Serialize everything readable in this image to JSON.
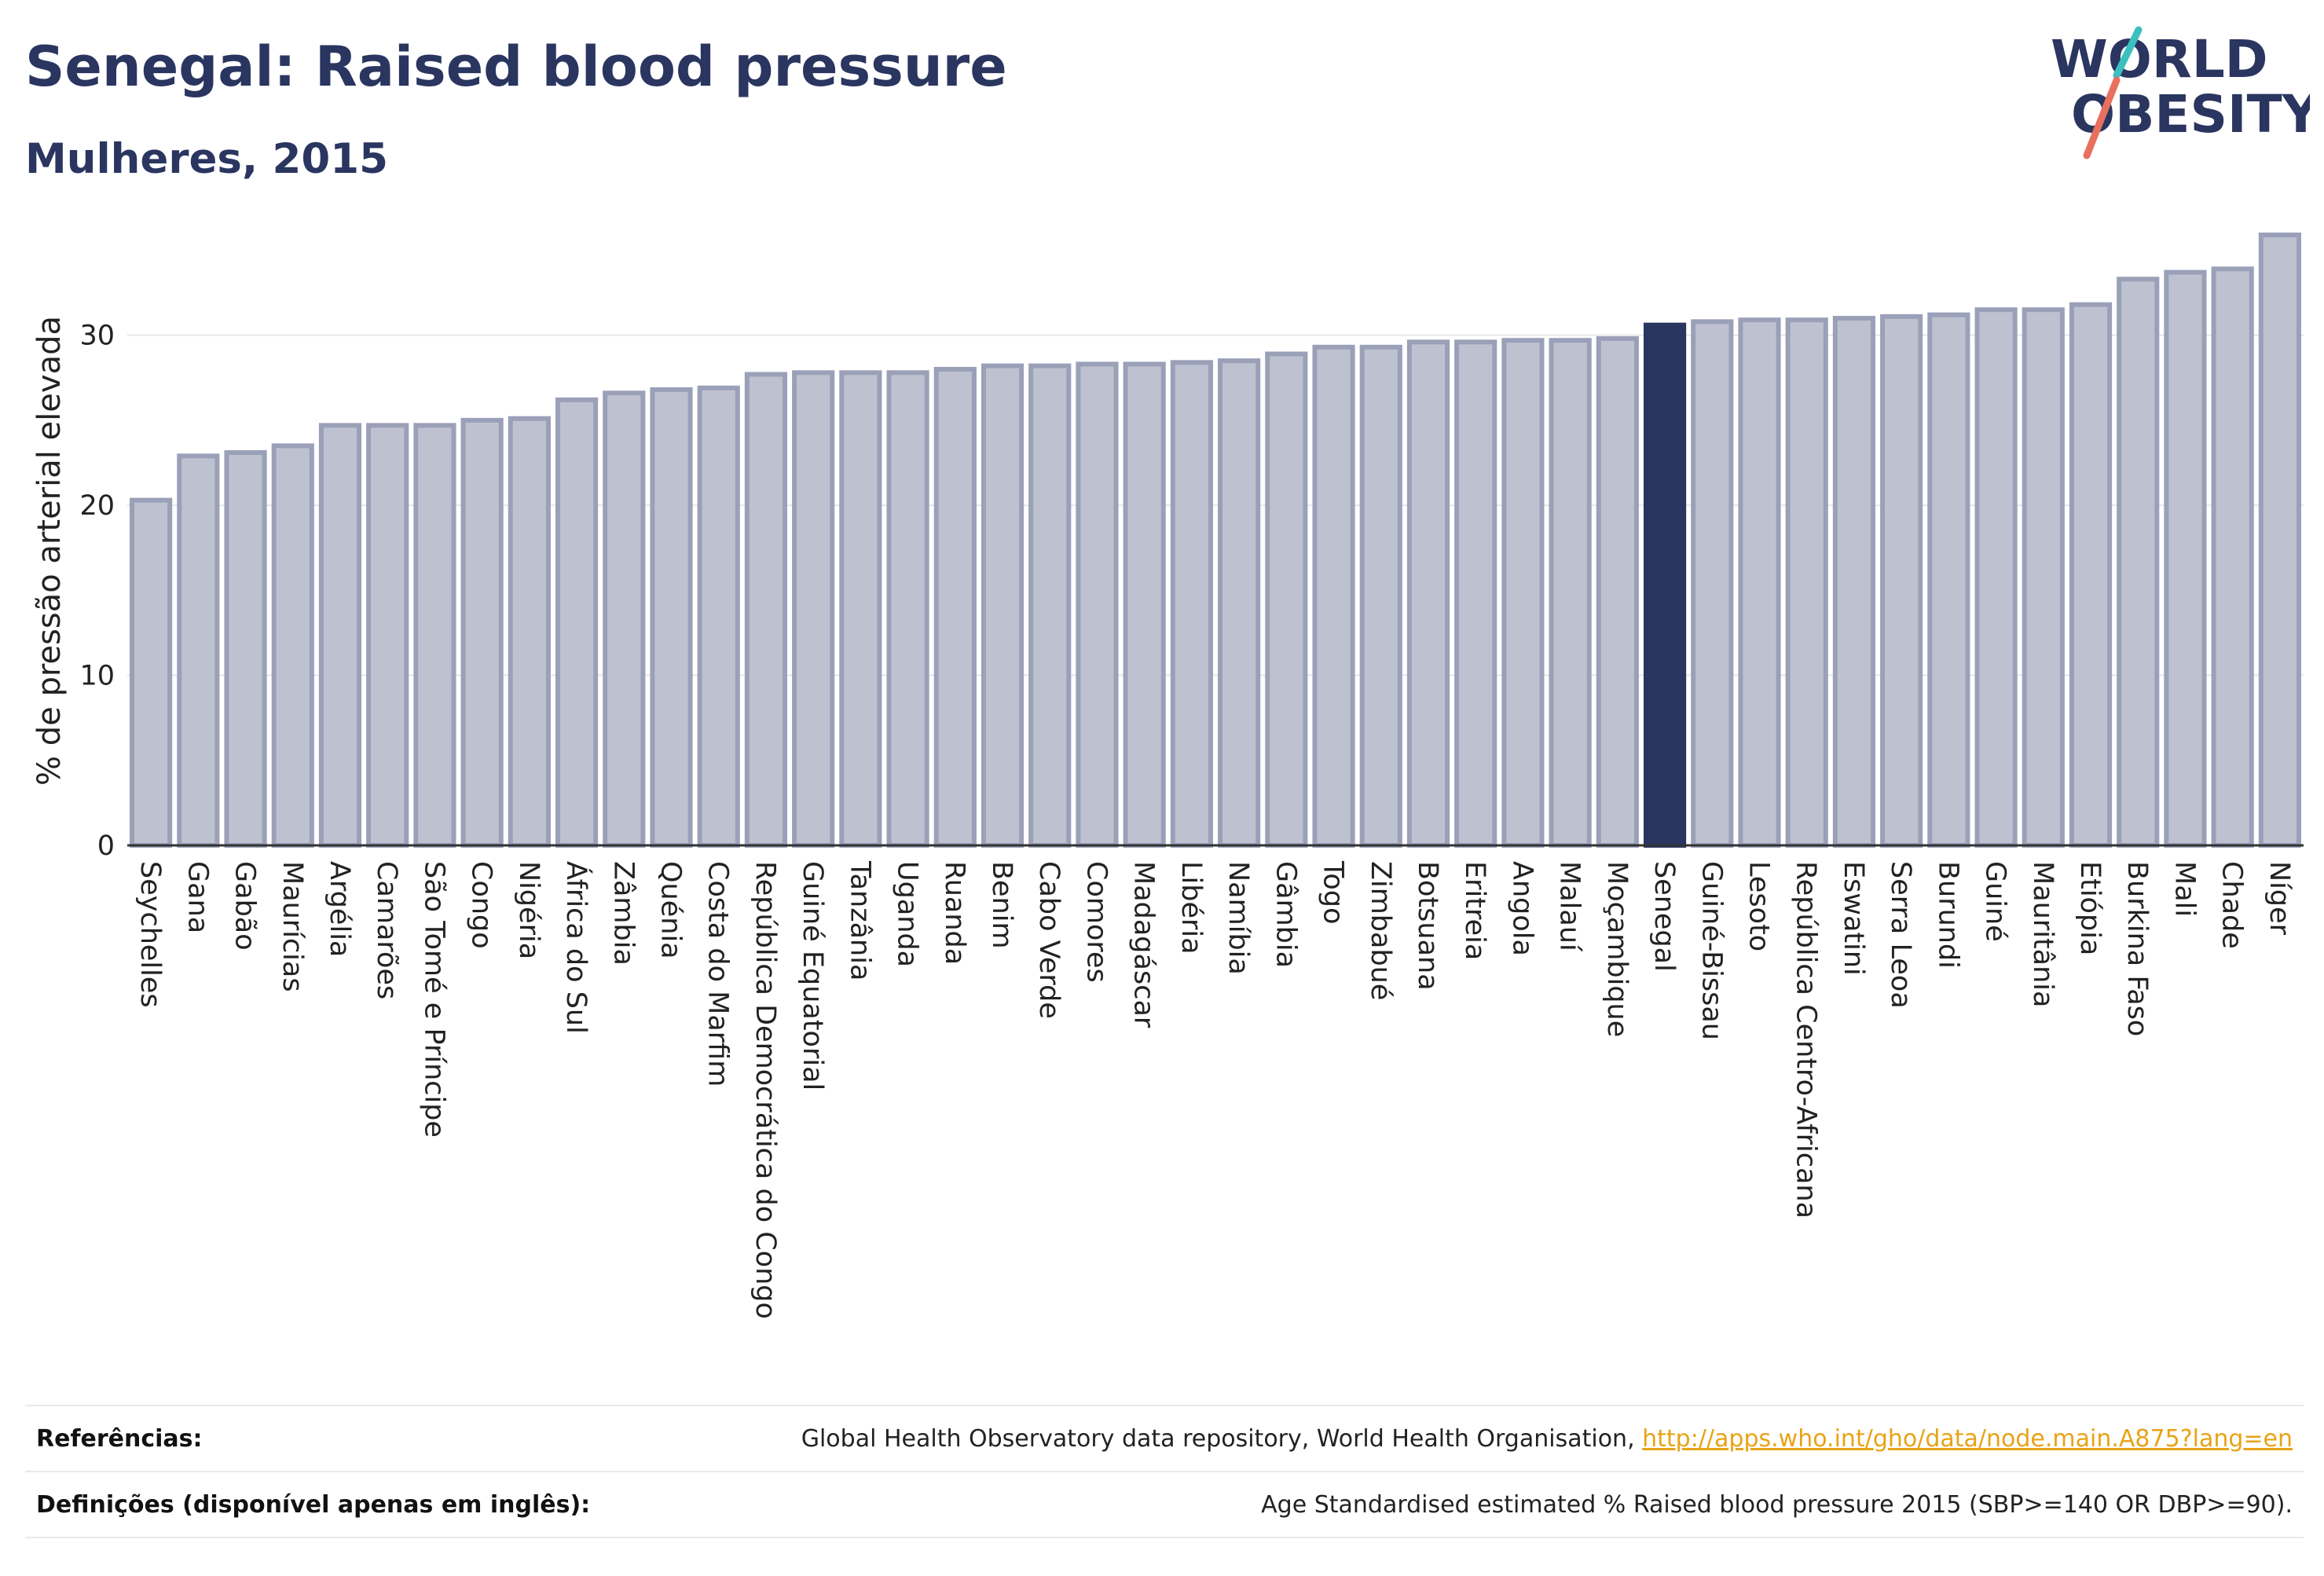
{
  "header": {
    "title": "Senegal: Raised blood pressure",
    "subtitle": "Mulheres, 2015",
    "logo_line1": "WORLD",
    "logo_line2": "OBESITY"
  },
  "colors": {
    "bar": "#bec2d0",
    "bar_stroke": "#9aa0b8",
    "highlight": "#2a3560",
    "title": "#2a3560",
    "link": "#e8a317",
    "logo_teal": "#3bbfbf",
    "logo_coral": "#e8705f"
  },
  "chart_data": {
    "type": "bar",
    "ylabel": "% de pressão arterial elevada",
    "ylim": [
      0,
      36.5
    ],
    "yticks": [
      0,
      10,
      20,
      30
    ],
    "grid": true,
    "highlight": "Senegal",
    "categories": [
      "Seychelles",
      "Gana",
      "Gabão",
      "Maurícias",
      "Argélia",
      "Camarões",
      "São Tomé e Príncipe",
      "Congo",
      "Nigéria",
      "África do Sul",
      "Zâmbia",
      "Quénia",
      "Costa do Marfim",
      "República Democrática do Congo",
      "Guiné Equatorial",
      "Tanzânia",
      "Uganda",
      "Ruanda",
      "Benim",
      "Cabo Verde",
      "Comores",
      "Madagáscar",
      "Libéria",
      "Namíbia",
      "Gâmbia",
      "Togo",
      "Zimbabué",
      "Botsuana",
      "Eritreia",
      "Angola",
      "Malauí",
      "Moçambique",
      "Senegal",
      "Guiné-Bissau",
      "Lesoto",
      "República Centro-Africana",
      "Eswatini",
      "Serra Leoa",
      "Burundi",
      "Guiné",
      "Mauritânia",
      "Etiópia",
      "Burkina Faso",
      "Mali",
      "Chade",
      "Níger"
    ],
    "values": [
      20.3,
      22.9,
      23.1,
      23.5,
      24.7,
      24.7,
      24.7,
      25.0,
      25.1,
      26.2,
      26.6,
      26.8,
      26.9,
      27.7,
      27.8,
      27.8,
      27.8,
      28.0,
      28.2,
      28.2,
      28.3,
      28.3,
      28.4,
      28.5,
      28.9,
      29.3,
      29.3,
      29.6,
      29.6,
      29.7,
      29.7,
      29.8,
      30.6,
      30.8,
      30.9,
      30.9,
      31.0,
      31.1,
      31.2,
      31.5,
      31.5,
      31.8,
      33.3,
      33.7,
      33.9,
      35.9
    ]
  },
  "footer": {
    "ref_label": "Referências:",
    "ref_text": "Global Health Observatory data repository, World Health Organisation, ",
    "ref_link": "http://apps.who.int/gho/data/node.main.A875?lang=en",
    "def_label": "Definições (disponível apenas em inglês):",
    "def_text": "Age Standardised estimated % Raised blood pressure 2015 (SBP>=140 OR DBP>=90)."
  }
}
